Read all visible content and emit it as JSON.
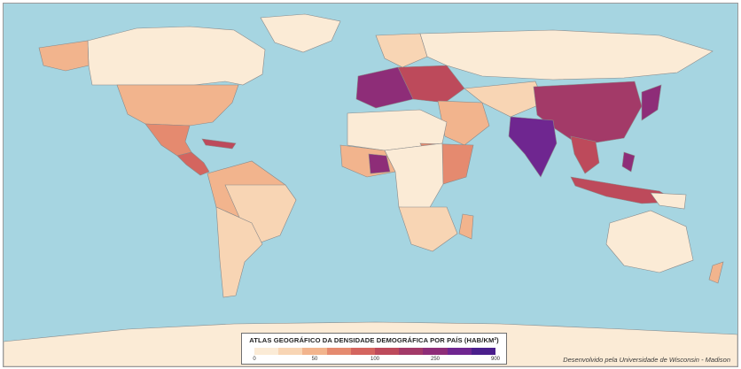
{
  "map": {
    "legend": {
      "title": "ATLAS GEOGRÁFICO DA DENSIDADE DEMOGRÁFICA POR PAÍS (HAB/KM²)",
      "ticks": [
        "0",
        "50",
        "100",
        "250",
        "900"
      ]
    },
    "credit": "Desenvolvido pela Universidade de Wisconsin - Madison",
    "colors": {
      "ocean": "#a6d5e1",
      "scale": [
        "#fbebd6",
        "#f8d5b4",
        "#f2b48d",
        "#e58a6f",
        "#d4655f",
        "#bd4a5b",
        "#a33a68",
        "#8e2d78",
        "#6f2690",
        "#4a1f8c"
      ]
    }
  }
}
